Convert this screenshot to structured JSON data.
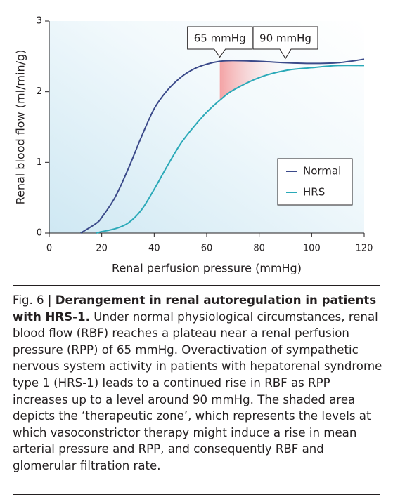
{
  "chart_data": {
    "type": "line",
    "y_label": "Renal blood flow (ml/min/g)",
    "x_label": "Renal perfusion pressure (mmHg)",
    "x": [
      12,
      18,
      20,
      25,
      30,
      35,
      40,
      45,
      50,
      55,
      60,
      65,
      70,
      80,
      90,
      100,
      110,
      120
    ],
    "series": [
      {
        "name": "Normal",
        "color": "#3b4a8a",
        "values": [
          0,
          0.14,
          0.22,
          0.5,
          0.9,
          1.35,
          1.76,
          2.02,
          2.2,
          2.32,
          2.39,
          2.43,
          2.44,
          2.43,
          2.41,
          2.4,
          2.41,
          2.46
        ]
      },
      {
        "name": "HRS",
        "color": "#2aa9b8",
        "values": [
          null,
          0,
          0.02,
          0.06,
          0.14,
          0.32,
          0.62,
          0.95,
          1.26,
          1.5,
          1.71,
          1.88,
          2.02,
          2.2,
          2.3,
          2.34,
          2.37,
          2.37
        ]
      }
    ],
    "annotations": [
      {
        "text": "65 mmHg",
        "x": 65
      },
      {
        "text": "90 mmHg",
        "x": 90
      }
    ],
    "xlim": [
      0,
      120
    ],
    "xticks": [
      0,
      20,
      40,
      60,
      80,
      100,
      120
    ],
    "ylim": [
      0,
      3
    ],
    "yticks": [
      0,
      1,
      2,
      3
    ],
    "legend": "lower right"
  },
  "caption": {
    "label": "Fig. 6 |",
    "title": "Derangement in renal autoregulation in patients with HRS-1.",
    "text": "Under normal physiological circumstances, renal blood flow (RBF) reaches a plateau near a renal perfusion pressure (RPP) of 65 mmHg. Overactivation of sympathetic nervous system activity in patients with hepatorenal syndrome type 1 (HRS-1) leads to a continued rise in RBF as RPP increases up to a level around 90 mmHg. The shaded area depicts the ‘therapeutic zone’, which represents the levels at which vasoconstrictor therapy might induce a rise in mean arterial pressure and RPP, and consequently RBF and glomerular filtration rate."
  }
}
